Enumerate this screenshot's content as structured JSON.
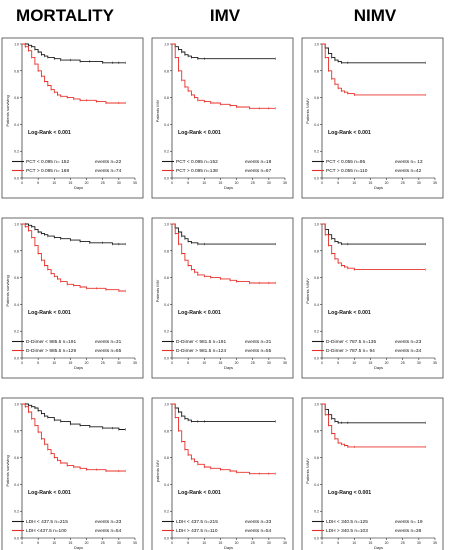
{
  "column_titles": [
    "MORTALITY",
    "IMV",
    "NIMV"
  ],
  "colors": {
    "black": "#1a1a1a",
    "red": "#e8302a",
    "frame": "#444444"
  },
  "chart_data": [
    {
      "type": "line",
      "title": "MORTALITY",
      "xlabel": "Days",
      "ylabel": "Patients surviving",
      "xticks": [
        "0",
        "5",
        "10",
        "15",
        "20",
        "25",
        "30",
        "35"
      ],
      "yticks": [
        "0.0",
        "0.2",
        "0.4",
        "0.6",
        "0.8",
        "1.0"
      ],
      "xlim": [
        0,
        35
      ],
      "ylim": [
        0,
        1
      ],
      "logrank": "Log-Rank < 0.001",
      "series": [
        {
          "name": "PCT < 0.095 n= 152",
          "events": "events n=22",
          "color": "black",
          "x": [
            0,
            1,
            2,
            3,
            4,
            5,
            6,
            7,
            8,
            10,
            12,
            15,
            18,
            21,
            25,
            28,
            30,
            32
          ],
          "y": [
            1.0,
            1.0,
            0.99,
            0.98,
            0.96,
            0.94,
            0.92,
            0.91,
            0.9,
            0.89,
            0.88,
            0.88,
            0.87,
            0.87,
            0.86,
            0.86,
            0.86,
            0.86
          ]
        },
        {
          "name": "PCT > 0.095 n= 168",
          "events": "events n=74",
          "color": "red",
          "x": [
            0,
            1,
            2,
            3,
            4,
            5,
            6,
            7,
            8,
            9,
            10,
            11,
            12,
            14,
            16,
            18,
            20,
            23,
            26,
            30,
            32
          ],
          "y": [
            1.0,
            0.98,
            0.95,
            0.9,
            0.85,
            0.8,
            0.76,
            0.72,
            0.69,
            0.66,
            0.64,
            0.62,
            0.61,
            0.6,
            0.59,
            0.58,
            0.58,
            0.57,
            0.56,
            0.56,
            0.56
          ]
        }
      ]
    },
    {
      "type": "line",
      "title": "IMV",
      "xlabel": "Days",
      "ylabel": "Patients IMV",
      "xticks": [
        "0",
        "5",
        "10",
        "15",
        "20",
        "25",
        "30",
        "35"
      ],
      "yticks": [
        "0.0",
        "0.2",
        "0.4",
        "0.6",
        "0.8",
        "1.0"
      ],
      "xlim": [
        0,
        35
      ],
      "ylim": [
        0,
        1
      ],
      "logrank": "Log-Rank < 0.001",
      "series": [
        {
          "name": "PCT < 0.095 n=152",
          "events": "events n=18",
          "color": "black",
          "x": [
            0,
            1,
            2,
            3,
            4,
            5,
            6,
            8,
            10,
            32
          ],
          "y": [
            1.0,
            0.98,
            0.96,
            0.94,
            0.92,
            0.91,
            0.9,
            0.89,
            0.89,
            0.89
          ]
        },
        {
          "name": "PCT > 0.095 n=138",
          "events": "events n=67",
          "color": "red",
          "x": [
            0,
            1,
            2,
            3,
            4,
            5,
            6,
            7,
            8,
            10,
            12,
            15,
            18,
            20,
            24,
            27,
            30,
            32
          ],
          "y": [
            1.0,
            0.9,
            0.8,
            0.73,
            0.68,
            0.65,
            0.62,
            0.6,
            0.58,
            0.57,
            0.56,
            0.55,
            0.54,
            0.53,
            0.52,
            0.52,
            0.52,
            0.52
          ]
        }
      ]
    },
    {
      "type": "line",
      "title": "NIMV",
      "xlabel": "Days",
      "ylabel": "Patients NIMV",
      "xticks": [
        "0",
        "5",
        "10",
        "15",
        "20",
        "25",
        "30",
        "35"
      ],
      "yticks": [
        "0.0",
        "0.2",
        "0.4",
        "0.6",
        "0.8",
        "1.0"
      ],
      "xlim": [
        0,
        35
      ],
      "ylim": [
        0,
        1
      ],
      "logrank": "Log-Rank < 0.001",
      "series": [
        {
          "name": "PCT < 0.055 n=95",
          "events": "events n= 13",
          "color": "black",
          "x": [
            0,
            1,
            2,
            3,
            4,
            5,
            6,
            8,
            32
          ],
          "y": [
            1.0,
            0.97,
            0.93,
            0.9,
            0.88,
            0.87,
            0.86,
            0.86,
            0.86
          ]
        },
        {
          "name": "PCT > 0.055 n=110",
          "events": "events n=42",
          "color": "red",
          "x": [
            0,
            1,
            2,
            3,
            4,
            5,
            6,
            7,
            8,
            10,
            32
          ],
          "y": [
            1.0,
            0.9,
            0.8,
            0.74,
            0.7,
            0.67,
            0.65,
            0.64,
            0.63,
            0.62,
            0.62
          ]
        }
      ]
    },
    {
      "type": "line",
      "title": "MORTALITY",
      "xlabel": "Days",
      "ylabel": "Patients surviving",
      "xticks": [
        "0",
        "5",
        "10",
        "15",
        "20",
        "25",
        "30",
        "35"
      ],
      "yticks": [
        "0.0",
        "0.2",
        "0.4",
        "0.6",
        "0.8",
        "1.0"
      ],
      "xlim": [
        0,
        35
      ],
      "ylim": [
        0,
        1
      ],
      "logrank": "Log-Rank < 0.001",
      "series": [
        {
          "name": "D-Dimer < 985.5 n=191",
          "events": "events n=31",
          "color": "black",
          "x": [
            0,
            1,
            2,
            3,
            4,
            5,
            6,
            7,
            8,
            10,
            12,
            15,
            18,
            21,
            25,
            28,
            30,
            32
          ],
          "y": [
            1.0,
            1.0,
            0.99,
            0.98,
            0.96,
            0.94,
            0.93,
            0.92,
            0.91,
            0.9,
            0.89,
            0.88,
            0.87,
            0.86,
            0.86,
            0.85,
            0.85,
            0.85
          ]
        },
        {
          "name": "D-Dimer > 985.5 n=129",
          "events": "events n=65",
          "color": "red",
          "x": [
            0,
            1,
            2,
            3,
            4,
            5,
            6,
            7,
            8,
            9,
            10,
            11,
            12,
            14,
            16,
            18,
            20,
            23,
            26,
            30,
            32
          ],
          "y": [
            1.0,
            0.98,
            0.95,
            0.9,
            0.84,
            0.78,
            0.73,
            0.69,
            0.66,
            0.63,
            0.61,
            0.59,
            0.57,
            0.55,
            0.54,
            0.53,
            0.52,
            0.52,
            0.51,
            0.5,
            0.5
          ]
        }
      ]
    },
    {
      "type": "line",
      "title": "IMV",
      "xlabel": "Days",
      "ylabel": "Patients IMV",
      "xticks": [
        "0",
        "5",
        "10",
        "15",
        "20",
        "25",
        "30",
        "35"
      ],
      "yticks": [
        "0.0",
        "0.2",
        "0.4",
        "0.6",
        "0.8",
        "1.0"
      ],
      "xlim": [
        0,
        35
      ],
      "ylim": [
        0,
        1
      ],
      "logrank": "Log-Rank < 0.001",
      "series": [
        {
          "name": "D-Dimer < 981.5 n=191",
          "events": "events n=31",
          "color": "black",
          "x": [
            0,
            1,
            2,
            3,
            4,
            5,
            6,
            8,
            10,
            32
          ],
          "y": [
            1.0,
            0.97,
            0.94,
            0.91,
            0.89,
            0.87,
            0.86,
            0.85,
            0.85,
            0.85
          ]
        },
        {
          "name": "D-Dimer > 981.5 n=124",
          "events": "events n=55",
          "color": "red",
          "x": [
            0,
            1,
            2,
            3,
            4,
            5,
            6,
            7,
            8,
            10,
            12,
            15,
            18,
            20,
            24,
            27,
            30,
            32
          ],
          "y": [
            1.0,
            0.93,
            0.85,
            0.78,
            0.73,
            0.69,
            0.66,
            0.64,
            0.62,
            0.61,
            0.6,
            0.59,
            0.58,
            0.57,
            0.56,
            0.56,
            0.56,
            0.56
          ]
        }
      ]
    },
    {
      "type": "line",
      "title": "NIMV",
      "xlabel": "Days",
      "ylabel": "Patients NIMV",
      "xticks": [
        "0",
        "5",
        "10",
        "15",
        "20",
        "25",
        "30",
        "35"
      ],
      "yticks": [
        "0.0",
        "0.2",
        "0.4",
        "0.6",
        "0.8",
        "1.0"
      ],
      "xlim": [
        0,
        35
      ],
      "ylim": [
        0,
        1
      ],
      "logrank": "Log-Rank < 0.001",
      "series": [
        {
          "name": "D-Dimer < 787.5 n=135",
          "events": "events n=23",
          "color": "black",
          "x": [
            0,
            1,
            2,
            3,
            4,
            5,
            6,
            8,
            32
          ],
          "y": [
            1.0,
            0.96,
            0.92,
            0.89,
            0.87,
            0.86,
            0.85,
            0.85,
            0.85
          ]
        },
        {
          "name": "D-Dimer > 787.5 n= 94",
          "events": "events n=34",
          "color": "red",
          "x": [
            0,
            1,
            2,
            3,
            4,
            5,
            6,
            7,
            8,
            10,
            32
          ],
          "y": [
            1.0,
            0.92,
            0.84,
            0.78,
            0.74,
            0.71,
            0.69,
            0.68,
            0.67,
            0.66,
            0.66
          ]
        }
      ]
    },
    {
      "type": "line",
      "title": "MORTALITY",
      "xlabel": "Days",
      "ylabel": "Patients surviving",
      "xticks": [
        "0",
        "5",
        "10",
        "15",
        "20",
        "25",
        "30",
        "35"
      ],
      "yticks": [
        "0.0",
        "0.2",
        "0.4",
        "0.6",
        "0.8",
        "1.0"
      ],
      "xlim": [
        0,
        35
      ],
      "ylim": [
        0,
        1
      ],
      "logrank": "Log-Rank < 0.001",
      "series": [
        {
          "name": "LDH < 437.5 n=215",
          "events": "events n=33",
          "color": "black",
          "x": [
            0,
            1,
            2,
            3,
            4,
            5,
            6,
            7,
            8,
            10,
            12,
            15,
            18,
            21,
            25,
            28,
            30,
            32
          ],
          "y": [
            1.0,
            1.0,
            0.99,
            0.98,
            0.97,
            0.95,
            0.93,
            0.91,
            0.9,
            0.88,
            0.87,
            0.85,
            0.84,
            0.83,
            0.82,
            0.82,
            0.81,
            0.81
          ]
        },
        {
          "name": "LDH <437.5 n=100",
          "events": "events n=54",
          "color": "red",
          "x": [
            0,
            1,
            2,
            3,
            4,
            5,
            6,
            7,
            8,
            9,
            10,
            11,
            12,
            14,
            16,
            18,
            20,
            23,
            26,
            30,
            32
          ],
          "y": [
            1.0,
            0.98,
            0.94,
            0.89,
            0.84,
            0.79,
            0.74,
            0.7,
            0.66,
            0.63,
            0.6,
            0.58,
            0.56,
            0.54,
            0.53,
            0.52,
            0.51,
            0.51,
            0.5,
            0.5,
            0.5
          ]
        }
      ]
    },
    {
      "type": "line",
      "title": "IMV",
      "xlabel": "Days",
      "ylabel": "patients IMV",
      "xticks": [
        "0",
        "5",
        "10",
        "15",
        "20",
        "25",
        "30",
        "35"
      ],
      "yticks": [
        "0.0",
        "0.2",
        "0.4",
        "0.6",
        "0.8",
        "1.0"
      ],
      "xlim": [
        0,
        35
      ],
      "ylim": [
        0,
        1
      ],
      "logrank": "Log-Rank < 0.001",
      "series": [
        {
          "name": "LDH < 437.5 n=215",
          "events": "events n=33",
          "color": "black",
          "x": [
            0,
            1,
            2,
            3,
            4,
            5,
            6,
            8,
            10,
            32
          ],
          "y": [
            1.0,
            0.97,
            0.94,
            0.91,
            0.89,
            0.88,
            0.87,
            0.87,
            0.87,
            0.87
          ]
        },
        {
          "name": "LDH > 437.5 n=110",
          "events": "events n=54",
          "color": "red",
          "x": [
            0,
            1,
            2,
            3,
            4,
            5,
            6,
            7,
            8,
            10,
            12,
            15,
            18,
            20,
            24,
            27,
            30,
            32
          ],
          "y": [
            1.0,
            0.9,
            0.8,
            0.72,
            0.66,
            0.62,
            0.59,
            0.57,
            0.55,
            0.53,
            0.52,
            0.51,
            0.5,
            0.49,
            0.48,
            0.48,
            0.48,
            0.48
          ]
        }
      ]
    },
    {
      "type": "line",
      "title": "NIMV",
      "xlabel": "Days",
      "ylabel": "Patients NIMV",
      "xticks": [
        "0",
        "5",
        "10",
        "15",
        "20",
        "25",
        "30",
        "35"
      ],
      "yticks": [
        "0.0",
        "0.2",
        "0.4",
        "0.6",
        "0.8",
        "1.0"
      ],
      "xlim": [
        0,
        35
      ],
      "ylim": [
        0,
        1
      ],
      "logrank": "Log-Rang < 0.001",
      "series": [
        {
          "name": "LDH < 340.5 n=125",
          "events": "events n= 19",
          "color": "black",
          "x": [
            0,
            1,
            2,
            3,
            4,
            5,
            6,
            8,
            32
          ],
          "y": [
            1.0,
            0.96,
            0.92,
            0.89,
            0.87,
            0.86,
            0.86,
            0.86,
            0.86
          ]
        },
        {
          "name": "LDH > 340.5 n=103",
          "events": "events n=38",
          "color": "red",
          "x": [
            0,
            1,
            2,
            3,
            4,
            5,
            6,
            7,
            8,
            10,
            32
          ],
          "y": [
            1.0,
            0.92,
            0.84,
            0.78,
            0.74,
            0.71,
            0.7,
            0.69,
            0.68,
            0.68,
            0.68
          ]
        }
      ]
    }
  ]
}
